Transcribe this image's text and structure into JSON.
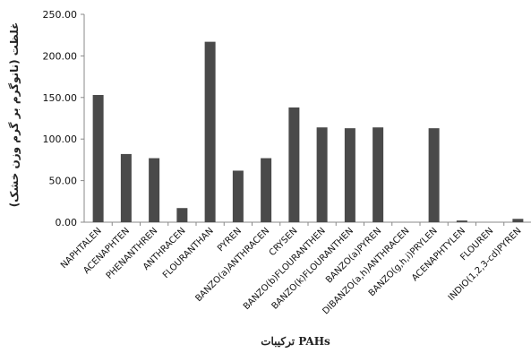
{
  "chart_data": {
    "type": "bar",
    "ylabel": "غلظت (نانوگرم بر گرم وزن خشک)",
    "xlabel": "ترکیبات PAHs",
    "ylim": [
      0,
      250
    ],
    "yticks": [
      "0.00",
      "50.00",
      "100.00",
      "150.00",
      "200.00",
      "250.00"
    ],
    "grid": false,
    "categories": [
      "NAPHTALEN",
      "ACENAPHTEN",
      "PHENANTHREN",
      "ANTHRACEN",
      "FLOURANTHAN",
      "PYREN",
      "BANZO(a)ANTHRACEN",
      "CRYSEN",
      "BANZO(b)FLOURANTHEN",
      "BANZO(k)FLOURANTHEN",
      "BANZO(a)PYREN",
      "DIBANZO(a,h)ANTHRACEN",
      "BANZO(g,h,i)PRYLEN",
      "ACENAPHTYLEN",
      "FLOUREN",
      "INDIO(1,2,3-cd)PYREN"
    ],
    "values": [
      153,
      82,
      77,
      17,
      217,
      62,
      77,
      138,
      114,
      113,
      114,
      0,
      113,
      2,
      0,
      4
    ],
    "bar_color": "#4a4a4a"
  }
}
